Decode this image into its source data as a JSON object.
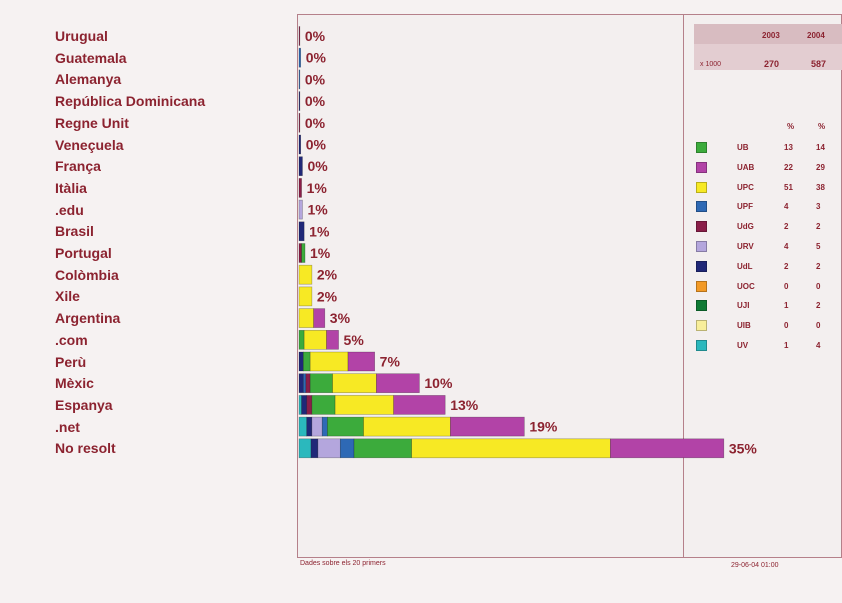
{
  "chart_data": {
    "type": "bar",
    "stacked": true,
    "orientation": "horizontal",
    "categories": [
      "Urugual",
      "Guatemala",
      "Alemanya",
      "República Dominicana",
      "Regne Unit",
      "Veneçuela",
      "França",
      "Itàlia",
      ".edu",
      "Brasil",
      "Portugal",
      "Colòmbia",
      "Xile",
      "Argentina",
      ".com",
      "Perù",
      "Mèxic",
      "Espanya",
      ".net",
      "No resolt"
    ],
    "totals_labels": [
      "0%",
      "0%",
      "0%",
      "0%",
      "0%",
      "0%",
      "0%",
      "1%",
      "1%",
      "1%",
      "1%",
      "2%",
      "2%",
      "3%",
      "5%",
      "7%",
      "10%",
      "13%",
      "19%",
      "35%"
    ],
    "segment_order": [
      "UV",
      "UdL",
      "URV",
      "UPF",
      "UdG",
      "UB",
      "UPC",
      "UAB",
      "UJI",
      "UIB",
      "UOC"
    ],
    "rows": [
      {
        "UdG": 0.1
      },
      {
        "UPF": 0.2
      },
      {
        "UPF": 0.1
      },
      {
        "UdL": 0.1
      },
      {
        "UdG": 0.1
      },
      {
        "UdL": 0.2
      },
      {
        "UdL": 0.4
      },
      {
        "UdG": 0.3
      },
      {
        "URV": 0.4
      },
      {
        "UdL": 0.6
      },
      {
        "UB": 0.4,
        "UdG": 0.3
      },
      {
        "UPC": 1.5
      },
      {
        "UPC": 1.5
      },
      {
        "UPC": 1.7,
        "UAB": 1.3
      },
      {
        "UPC": 2.6,
        "UB": 0.6,
        "UAB": 1.4
      },
      {
        "UdL": 0.5,
        "UPC": 4.4,
        "UAB": 3.1,
        "UB": 0.8
      },
      {
        "UdL": 0.5,
        "UPF": 0.3,
        "UdG": 0.5,
        "UPC": 5.1,
        "UAB": 5.0,
        "UB": 2.6
      },
      {
        "UdL": 0.6,
        "UdG": 0.6,
        "UV": 0.3,
        "UPC": 6.8,
        "UAB": 6.0,
        "UB": 2.7
      },
      {
        "UV": 0.9,
        "UdL": 0.6,
        "URV": 1.2,
        "UPF": 0.6,
        "UPC": 10.1,
        "UAB": 8.6,
        "UB": 4.2
      },
      {
        "UV": 1.4,
        "UdL": 0.8,
        "URV": 2.6,
        "UPF": 1.6,
        "UPC": 23.1,
        "UAB": 13.2,
        "UB": 6.7
      }
    ],
    "legend": [
      {
        "name": "UB",
        "pct_2003": "13",
        "pct_2004": "14"
      },
      {
        "name": "UAB",
        "pct_2003": "22",
        "pct_2004": "29"
      },
      {
        "name": "UPC",
        "pct_2003": "51",
        "pct_2004": "38"
      },
      {
        "name": "UPF",
        "pct_2003": "4",
        "pct_2004": "3"
      },
      {
        "name": "UdG",
        "pct_2003": "2",
        "pct_2004": "2"
      },
      {
        "name": "URV",
        "pct_2003": "4",
        "pct_2004": "5"
      },
      {
        "name": "UdL",
        "pct_2003": "2",
        "pct_2004": "2"
      },
      {
        "name": "UOC",
        "pct_2003": "0",
        "pct_2004": "0"
      },
      {
        "name": "UJI",
        "pct_2003": "1",
        "pct_2004": "2"
      },
      {
        "name": "UIB",
        "pct_2003": "0",
        "pct_2004": "0"
      },
      {
        "name": "UV",
        "pct_2003": "1",
        "pct_2004": "4"
      }
    ],
    "colors": {
      "UB": "#3cab3c",
      "UAB": "#b243a7",
      "UPC": "#f7e924",
      "UPF": "#2e69b5",
      "UdG": "#8a1e49",
      "URV": "#b4a6dd",
      "UdL": "#202878",
      "UOC": "#f39a26",
      "UJI": "#0f7a34",
      "UIB": "#f8ee9a",
      "UV": "#2bb8bd"
    },
    "xlim": [
      0,
      60
    ]
  },
  "summary": {
    "year_2003": "2003",
    "year_2004": "2004",
    "unit": "x 1000",
    "value_2003": "270",
    "value_2004": "587",
    "pct_header_2003": "%",
    "pct_header_2004": "%"
  },
  "footnote": "Dades sobre els 20 primers",
  "timestamp": "29-06-04 01:00",
  "text_color": "#8c2330"
}
